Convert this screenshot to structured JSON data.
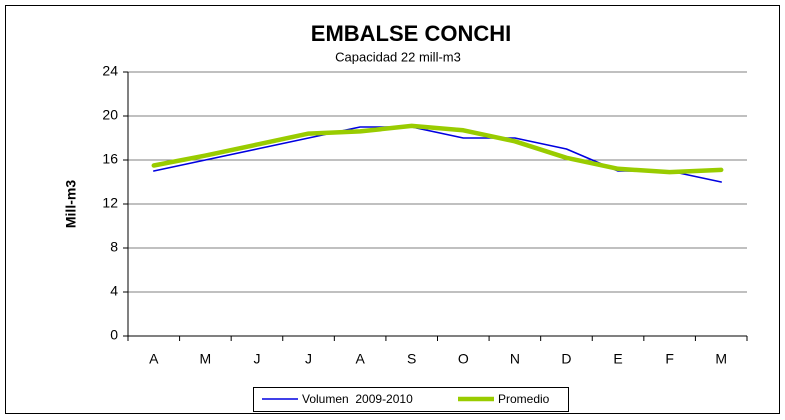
{
  "chart_data": {
    "type": "line",
    "title": "EMBALSE CONCHI",
    "subtitle": "Capacidad 22 mill-m3",
    "y_label": "Mill-m3",
    "categories": [
      "A",
      "M",
      "J",
      "J",
      "A",
      "S",
      "O",
      "N",
      "D",
      "E",
      "F",
      "M"
    ],
    "series": [
      {
        "name": "Volumen  2009-2010",
        "color": "#0000e0",
        "values": [
          15,
          16,
          17,
          18,
          19,
          19,
          18,
          18,
          17,
          15,
          15,
          14
        ]
      },
      {
        "name": "Promedio",
        "color": "#99cc00",
        "values": [
          15.5,
          16.4,
          17.4,
          18.4,
          18.6,
          19.1,
          18.7,
          17.7,
          16.2,
          15.2,
          14.9,
          15.1
        ]
      }
    ],
    "ylim": [
      0,
      24
    ],
    "yticks": [
      0,
      4,
      8,
      12,
      16,
      20,
      24
    ],
    "grid": true
  }
}
